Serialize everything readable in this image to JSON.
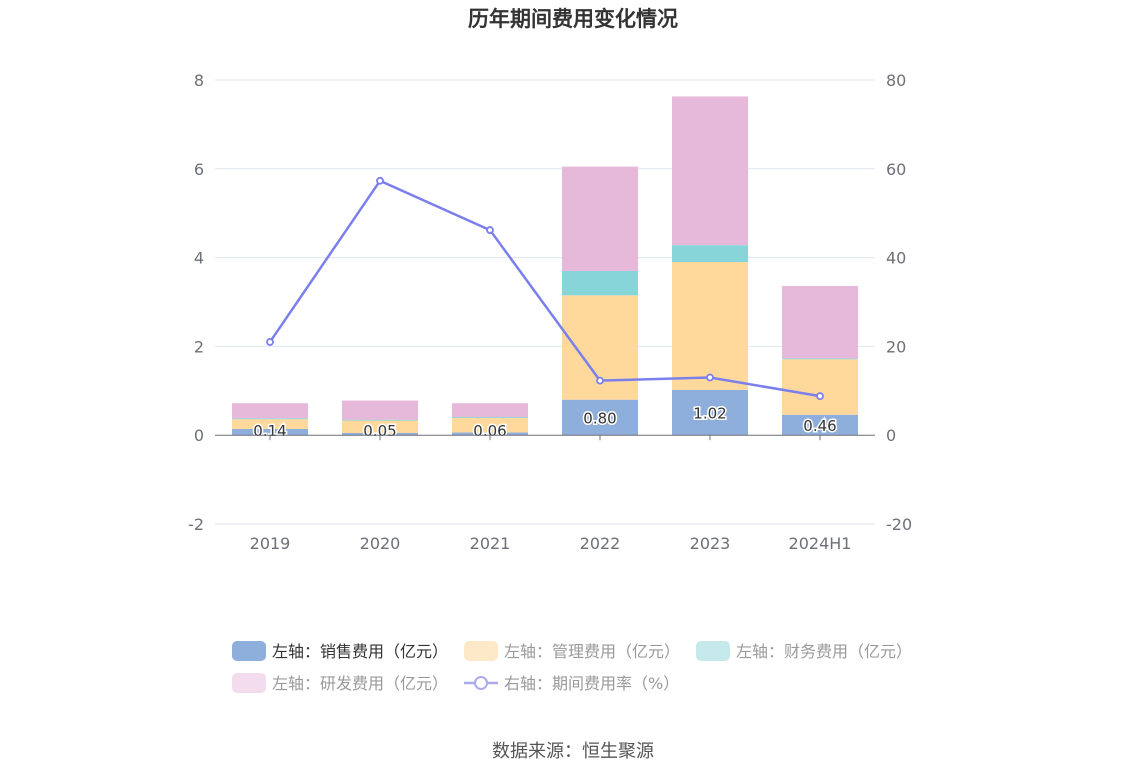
{
  "chart_data": {
    "type": "bar",
    "title": "历年期间费用变化情况",
    "categories": [
      "2019",
      "2020",
      "2021",
      "2022",
      "2023",
      "2024H1"
    ],
    "y_left": {
      "min": -2,
      "max": 8,
      "ticks": [
        "-2",
        "0",
        "2",
        "4",
        "6",
        "8"
      ]
    },
    "y_right": {
      "min": -20,
      "max": 80,
      "ticks": [
        "-20",
        "0",
        "20",
        "40",
        "60",
        "80"
      ]
    },
    "grid": true,
    "legend_position": "bottom",
    "series": [
      {
        "name": "左轴：销售费用（亿元）",
        "type": "bar",
        "axis": "left",
        "color": "#8eaedc",
        "values": [
          0.14,
          0.05,
          0.06,
          0.8,
          1.02,
          0.46
        ],
        "labels": [
          "0.14",
          "0.05",
          "0.06",
          "0.80",
          "1.02",
          "0.46"
        ]
      },
      {
        "name": "左轴：管理费用（亿元）",
        "type": "bar",
        "axis": "left",
        "color": "#ffd99b",
        "values": [
          0.22,
          0.28,
          0.33,
          2.35,
          2.88,
          1.25
        ]
      },
      {
        "name": "左轴：财务费用（亿元）",
        "type": "bar",
        "axis": "left",
        "color": "#87d4d9",
        "values": [
          0.02,
          0.02,
          0.02,
          0.55,
          0.38,
          0.02
        ]
      },
      {
        "name": "左轴：研发费用（亿元）",
        "type": "bar",
        "axis": "left",
        "color": "#e6b9da",
        "values": [
          0.34,
          0.43,
          0.31,
          2.35,
          3.35,
          1.63
        ]
      },
      {
        "name": "右轴：期间费用率（%）",
        "type": "line",
        "axis": "right",
        "color": "#7b7fec",
        "values": [
          21.0,
          57.3,
          46.2,
          12.3,
          13.0,
          8.8
        ]
      }
    ],
    "legend_colors": [
      "#8eaedc",
      "#fde8c7",
      "#c5e8ea",
      "#f2dcee",
      "#a9ace9"
    ]
  },
  "source": "数据来源：恒生聚源"
}
